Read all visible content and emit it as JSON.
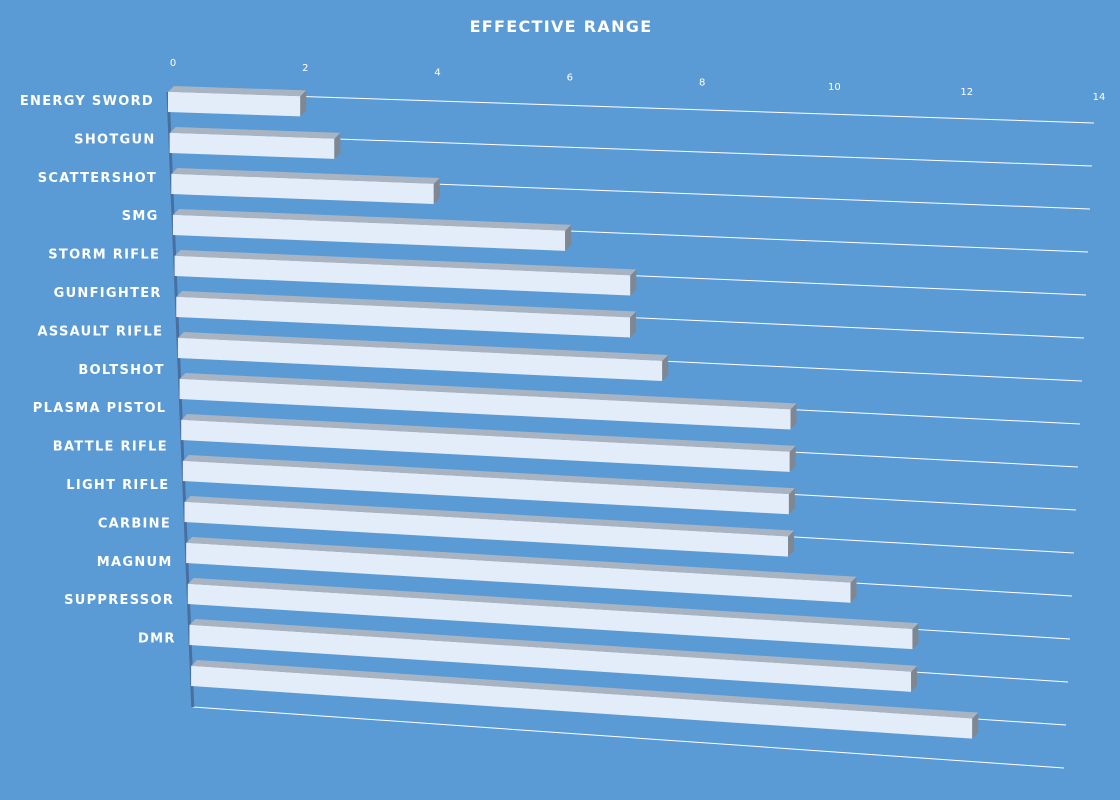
{
  "chart_data": {
    "type": "bar",
    "orientation": "horizontal",
    "style": "3d-perspective",
    "title": "EFFECTIVE RANGE",
    "xlabel": "",
    "ylabel": "",
    "xlim": [
      0,
      14
    ],
    "x_ticks": [
      "0",
      "2",
      "4",
      "6",
      "8",
      "10",
      "12",
      "14"
    ],
    "grid": true,
    "legend": "none",
    "categories": [
      "ENERGY SWORD",
      "SHOTGUN",
      "SCATTERSHOT",
      "SMG",
      "STORM RIFLE",
      "GUNFIGHTER",
      "ASSAULT RIFLE",
      "BOLTSHOT",
      "PLASMA PISTOL",
      "BATTLE RIFLE",
      "LIGHT RIFLE",
      "CARBINE",
      "MAGNUM",
      "SUPPRESSOR",
      "DMR"
    ],
    "values": [
      2,
      2.5,
      4,
      6,
      7,
      7,
      7.5,
      9.5,
      9.5,
      9.5,
      9.5,
      10.5,
      11.5,
      11.5,
      12.5
    ],
    "colors": {
      "background": "#5b9bd5",
      "bar": "#e3ecf9",
      "bar_shadow": "#a9b4c2",
      "text": "#ffffff",
      "grid": "#ffffff"
    }
  }
}
